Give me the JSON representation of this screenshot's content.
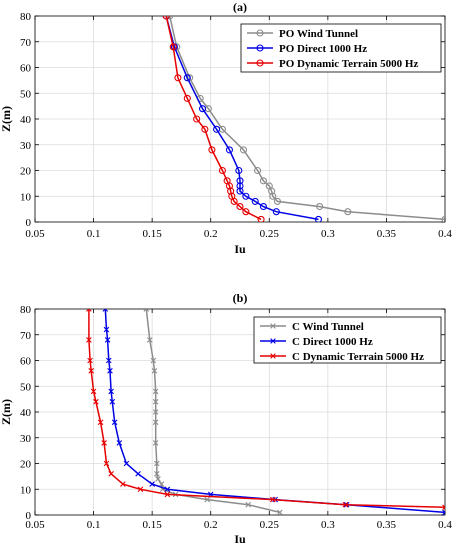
{
  "chart_data": [
    {
      "type": "line",
      "title": "(a)",
      "xlabel": "Iu",
      "ylabel": "Z(m)",
      "xlim": [
        0.05,
        0.4
      ],
      "ylim": [
        0,
        80
      ],
      "xticks": [
        "0.05",
        "0.1",
        "0.15",
        "0.2",
        "0.25",
        "0.3",
        "0.35",
        "0.4"
      ],
      "yticks": [
        "0",
        "10",
        "20",
        "30",
        "40",
        "50",
        "60",
        "70",
        "80"
      ],
      "grid": true,
      "legend": "top-right",
      "series": [
        {
          "name": "PO Wind Tunnel",
          "color": "#8c8c8c",
          "marker": "circle",
          "x": [
            0.4,
            0.317,
            0.293,
            0.257,
            0.253,
            0.252,
            0.25,
            0.245,
            0.24,
            0.228,
            0.21,
            0.198,
            0.191,
            0.182,
            0.171,
            0.165
          ],
          "y": [
            1,
            4,
            6,
            8,
            10,
            12,
            14,
            16,
            20,
            28,
            36,
            44,
            48,
            56,
            68,
            80
          ]
        },
        {
          "name": "PO Direct 1000 Hz",
          "color": "#0000e6",
          "marker": "circle",
          "x": [
            0.292,
            0.256,
            0.245,
            0.238,
            0.23,
            0.225,
            0.225,
            0.225,
            0.224,
            0.216,
            0.205,
            0.193,
            0.18,
            0.169,
            0.162
          ],
          "y": [
            1,
            4,
            6,
            8,
            10,
            12,
            14,
            16,
            20,
            28,
            36,
            44,
            56,
            68,
            80
          ]
        },
        {
          "name": "PO Dynamic Terrain 5000 Hz",
          "color": "#e60000",
          "marker": "circle",
          "x": [
            0.243,
            0.23,
            0.225,
            0.22,
            0.218,
            0.217,
            0.216,
            0.214,
            0.21,
            0.201,
            0.195,
            0.188,
            0.18,
            0.172,
            0.168,
            0.162
          ],
          "y": [
            1,
            4,
            6,
            8,
            10,
            12,
            14,
            16,
            20,
            28,
            36,
            40,
            48,
            56,
            68,
            80
          ]
        }
      ]
    },
    {
      "type": "line",
      "title": "(b)",
      "xlabel": "Iu",
      "ylabel": "Z(m)",
      "xlim": [
        0.05,
        0.4
      ],
      "ylim": [
        0,
        80
      ],
      "xticks": [
        "0.05",
        "0.1",
        "0.15",
        "0.2",
        "0.25",
        "0.3",
        "0.35",
        "0.4"
      ],
      "yticks": [
        "0",
        "10",
        "20",
        "30",
        "40",
        "50",
        "60",
        "70",
        "80"
      ],
      "grid": true,
      "legend": "top-right",
      "series": [
        {
          "name": "C Wind Tunnel",
          "color": "#8c8c8c",
          "marker": "x",
          "x": [
            0.259,
            0.232,
            0.197,
            0.17,
            0.159,
            0.158,
            0.155,
            0.154,
            0.154,
            0.153,
            0.153,
            0.153,
            0.153,
            0.153,
            0.152,
            0.151,
            0.148,
            0.145
          ],
          "y": [
            1,
            4,
            6,
            8,
            10,
            12,
            14,
            16,
            20,
            28,
            36,
            40,
            44,
            48,
            56,
            60,
            68,
            80
          ]
        },
        {
          "name": "C Direct 1000 Hz",
          "color": "#0000e6",
          "marker": "x",
          "x": [
            0.4,
            0.316,
            0.255,
            0.2,
            0.163,
            0.15,
            0.138,
            0.128,
            0.122,
            0.118,
            0.116,
            0.115,
            0.114,
            0.113,
            0.112,
            0.111,
            0.11
          ],
          "y": [
            1,
            4,
            6,
            8,
            10,
            12,
            16,
            20,
            28,
            36,
            44,
            48,
            56,
            60,
            68,
            72,
            80
          ]
        },
        {
          "name": "C Dynamic Terrain 5000 Hz",
          "color": "#e60000",
          "marker": "x",
          "x": [
            0.4,
            0.315,
            0.253,
            0.163,
            0.14,
            0.125,
            0.115,
            0.111,
            0.109,
            0.106,
            0.102,
            0.1,
            0.098,
            0.097,
            0.096,
            0.096
          ],
          "y": [
            3,
            4,
            6,
            8,
            10,
            12,
            16,
            20,
            28,
            36,
            44,
            48,
            56,
            60,
            68,
            80
          ]
        }
      ]
    }
  ]
}
